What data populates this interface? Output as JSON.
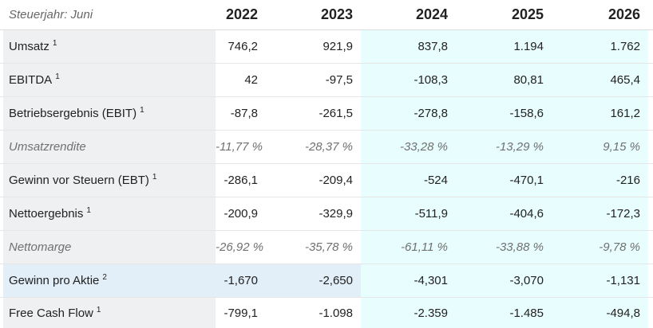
{
  "header": {
    "label": "Steuerjahr: Juni",
    "years": [
      "2022",
      "2023",
      "2024",
      "2025",
      "2026"
    ]
  },
  "rows": [
    {
      "label": "Umsatz",
      "sup": "1",
      "values": [
        "746,2",
        "921,9",
        "837,8",
        "1.194",
        "1.762"
      ]
    },
    {
      "label": "EBITDA",
      "sup": "1",
      "values": [
        "42",
        "-97,5",
        "-108,3",
        "80,81",
        "465,4"
      ]
    },
    {
      "label": "Betriebsergebnis (EBIT)",
      "sup": "1",
      "values": [
        "-87,8",
        "-261,5",
        "-278,8",
        "-158,6",
        "161,2"
      ]
    },
    {
      "label": "Umsatzrendite",
      "sup": "",
      "values": [
        "-11,77 %",
        "-28,37 %",
        "-33,28 %",
        "-13,29 %",
        "9,15 %"
      ]
    },
    {
      "label": "Gewinn vor Steuern (EBT)",
      "sup": "1",
      "values": [
        "-286,1",
        "-209,4",
        "-524",
        "-470,1",
        "-216"
      ]
    },
    {
      "label": "Nettoergebnis",
      "sup": "1",
      "values": [
        "-200,9",
        "-329,9",
        "-511,9",
        "-404,6",
        "-172,3"
      ]
    },
    {
      "label": "Nettomarge",
      "sup": "",
      "values": [
        "-26,92 %",
        "-35,78 %",
        "-61,11 %",
        "-33,88 %",
        "-9,78 %"
      ]
    },
    {
      "label": "Gewinn pro Aktie",
      "sup": "2",
      "values": [
        "-1,670",
        "-2,650",
        "-4,301",
        "-3,070",
        "-1,131"
      ]
    },
    {
      "label": "Free Cash Flow",
      "sup": "1",
      "values": [
        "-799,1",
        "-1.098",
        "-2.359",
        "-1.485",
        "-494,8"
      ]
    }
  ],
  "colors": {
    "label_bg": "#eef0f2",
    "estimate_bg": "#e8fdfd",
    "highlight_bg": "#e2eef8",
    "italic_text": "#707070"
  }
}
